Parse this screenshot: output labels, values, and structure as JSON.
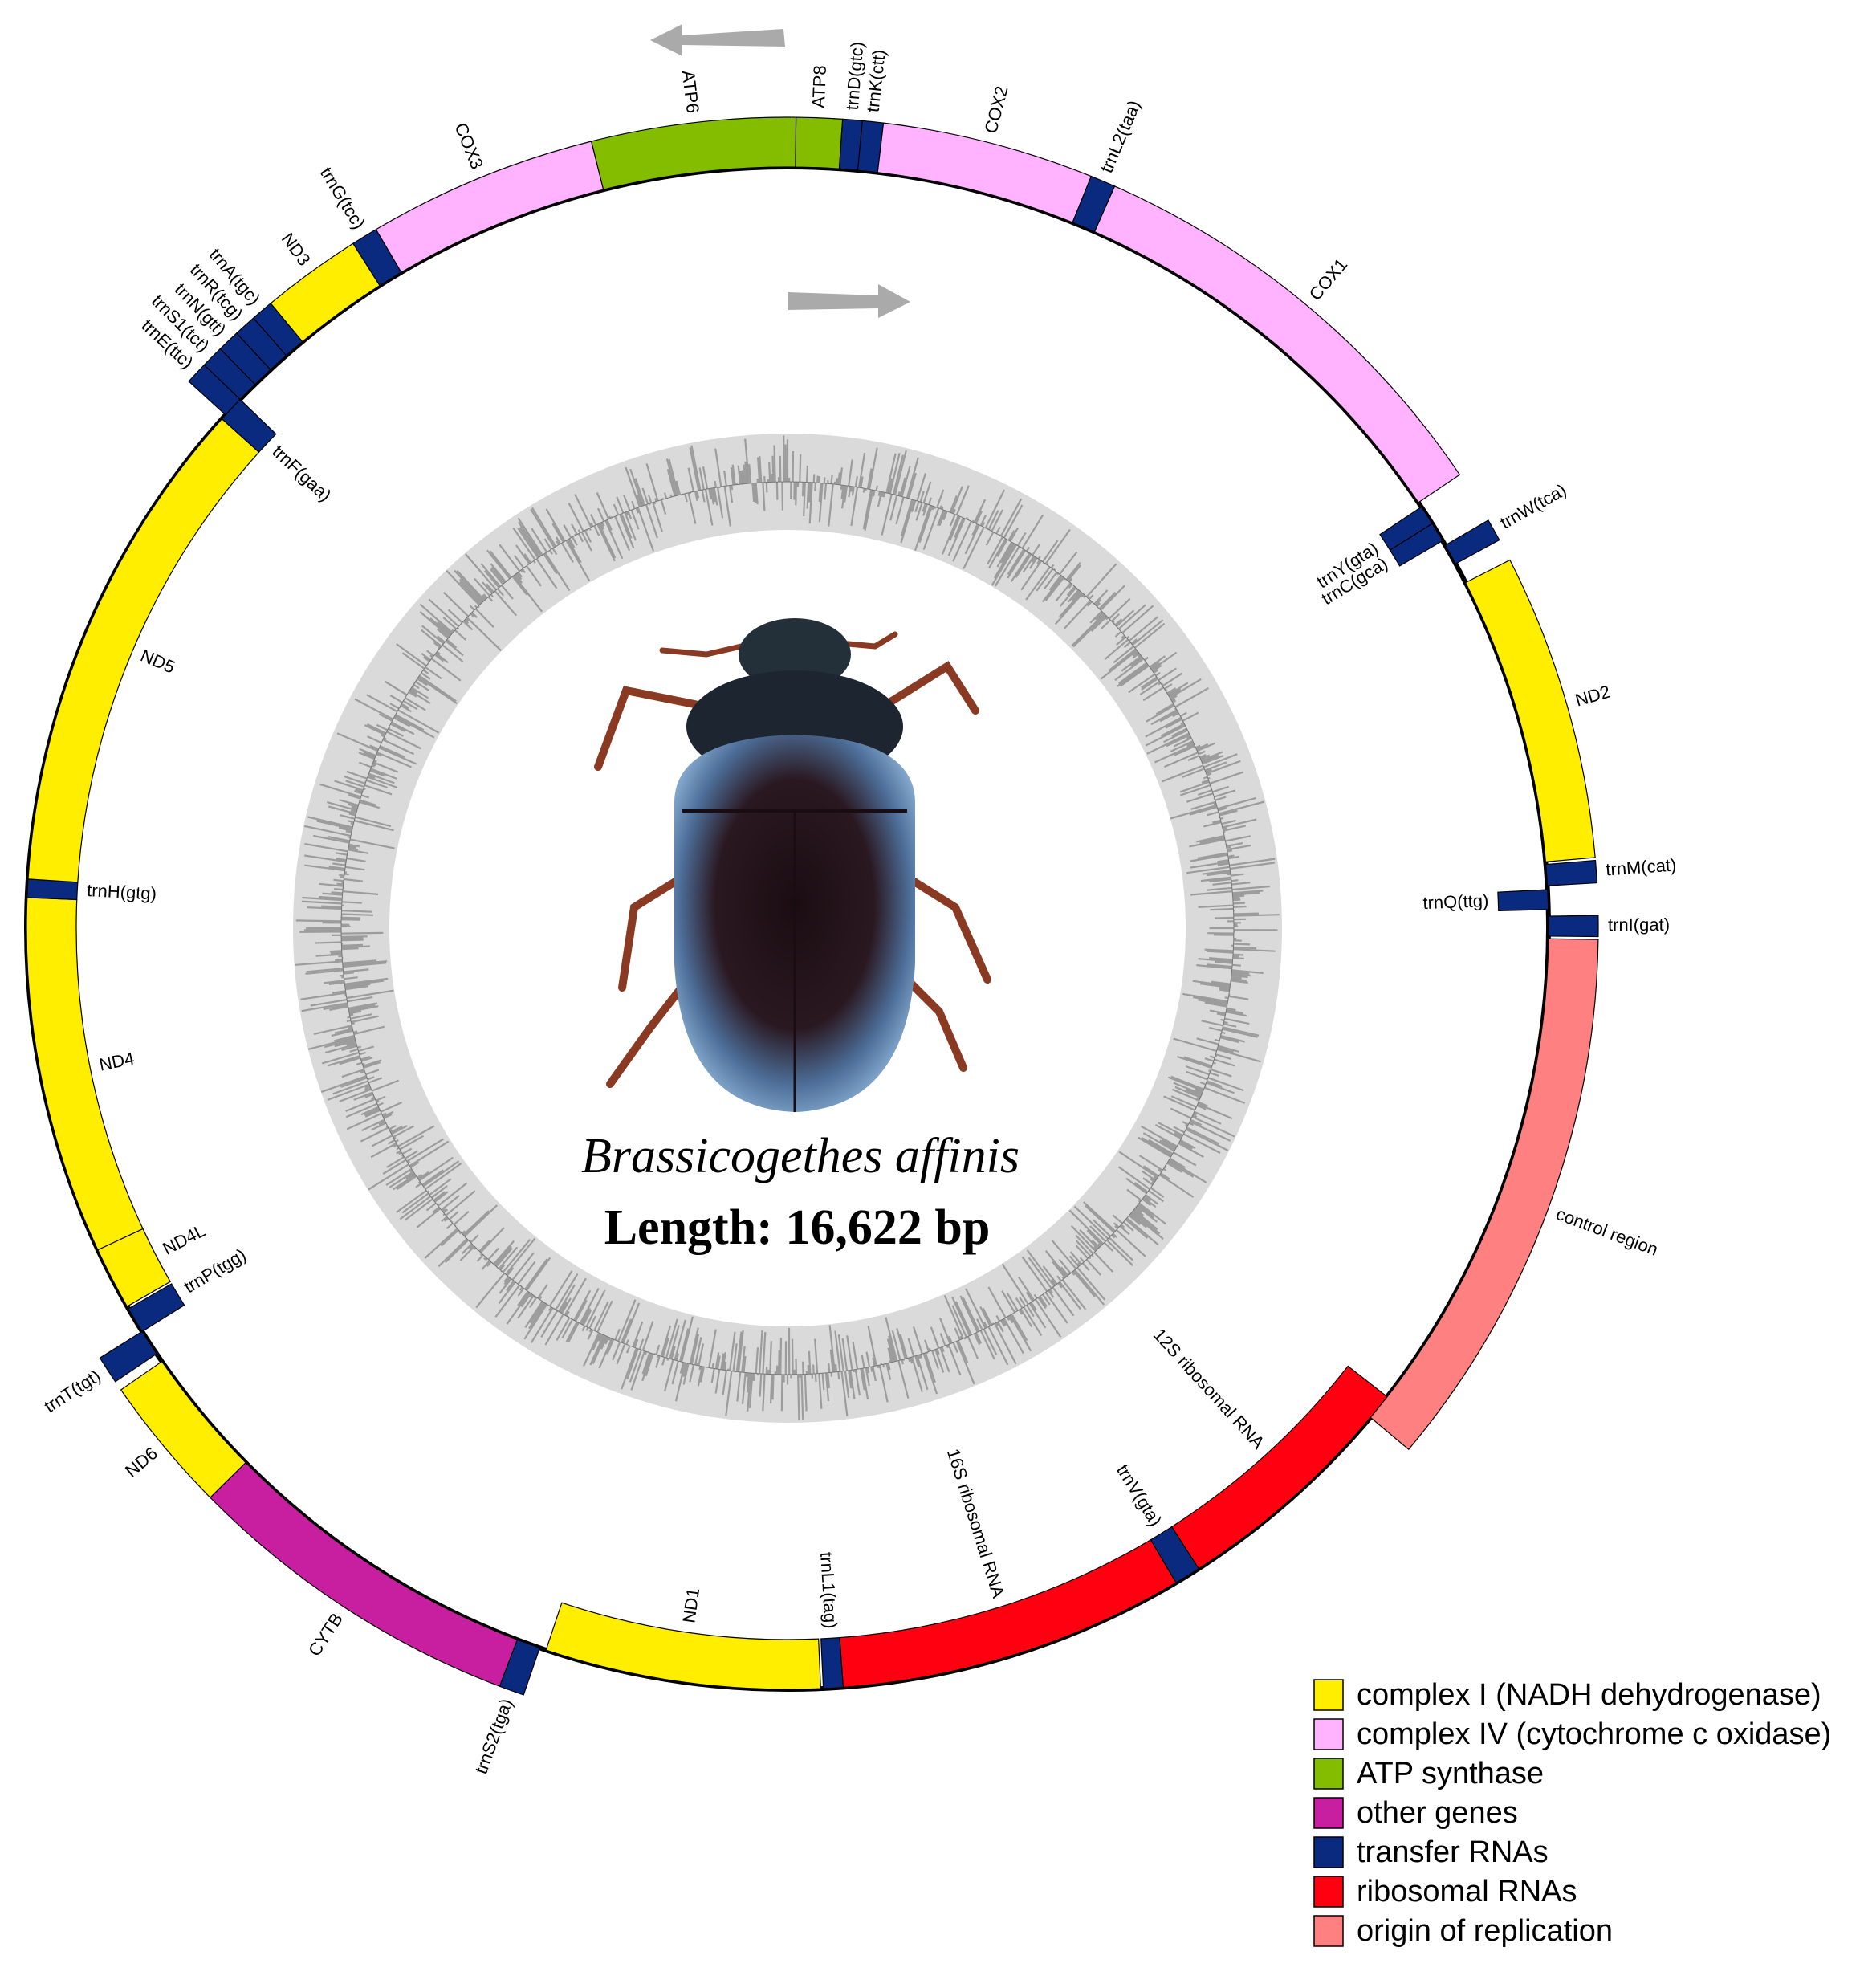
{
  "title": "Brassicogethes affinis",
  "length_label": "Length: 16,622 bp",
  "genes": [
    {
      "label": "ATP8",
      "color": "#84bd00"
    },
    {
      "label": "trnD(gtc)",
      "color": "#0a2a80"
    },
    {
      "label": "trnK(ctt)",
      "color": "#0a2a80"
    },
    {
      "label": "COX2",
      "color": "#ffb3ff"
    },
    {
      "label": "trnL2(taa)",
      "color": "#0a2a80"
    },
    {
      "label": "COX1",
      "color": "#ffb3ff"
    },
    {
      "label": "trnY(gta)",
      "color": "#0a2a80"
    },
    {
      "label": "trnC(gca)",
      "color": "#0a2a80"
    },
    {
      "label": "trnW(tca)",
      "color": "#0a2a80"
    },
    {
      "label": "ND2",
      "color": "#ffee00"
    },
    {
      "label": "trnM(cat)",
      "color": "#0a2a80"
    },
    {
      "label": "trnQ(ttg)",
      "color": "#0a2a80"
    },
    {
      "label": "trnI(gat)",
      "color": "#0a2a80"
    },
    {
      "label": "control region",
      "color": "#ff8080"
    },
    {
      "label": "12S ribosomal RNA",
      "color": "#ff0010"
    },
    {
      "label": "trnV(gta)",
      "color": "#0a2a80"
    },
    {
      "label": "16S ribosomal RNA",
      "color": "#ff0010"
    },
    {
      "label": "trnL1(tag)",
      "color": "#0a2a80"
    },
    {
      "label": "ND1",
      "color": "#ffee00"
    },
    {
      "label": "trnS2(tga)",
      "color": "#0a2a80"
    },
    {
      "label": "CYTB",
      "color": "#c71fa0"
    },
    {
      "label": "ND6",
      "color": "#ffee00"
    },
    {
      "label": "trnT(tgt)",
      "color": "#0a2a80"
    },
    {
      "label": "trnP(tgg)",
      "color": "#0a2a80"
    },
    {
      "label": "ND4L",
      "color": "#ffee00"
    },
    {
      "label": "ND4",
      "color": "#ffee00"
    },
    {
      "label": "trnH(gtg)",
      "color": "#0a2a80"
    },
    {
      "label": "ND5",
      "color": "#ffee00"
    },
    {
      "label": "trnF(gaa)",
      "color": "#0a2a80"
    },
    {
      "label": "trnE(ttc)",
      "color": "#0a2a80"
    },
    {
      "label": "trnS1(tct)",
      "color": "#0a2a80"
    },
    {
      "label": "trnN(gtt)",
      "color": "#0a2a80"
    },
    {
      "label": "trnR(tcg)",
      "color": "#0a2a80"
    },
    {
      "label": "trnA(tgc)",
      "color": "#0a2a80"
    },
    {
      "label": "ND3",
      "color": "#ffee00"
    },
    {
      "label": "trnG(tcc)",
      "color": "#0a2a80"
    },
    {
      "label": "COX3",
      "color": "#ffb3ff"
    },
    {
      "label": "ATP6",
      "color": "#84bd00"
    }
  ],
  "legend": [
    {
      "label": "complex I (NADH dehydrogenase)",
      "color": "#ffee00"
    },
    {
      "label": "complex IV (cytochrome c oxidase)",
      "color": "#ffb3ff"
    },
    {
      "label": "ATP synthase",
      "color": "#84bd00"
    },
    {
      "label": "other genes",
      "color": "#c71fa0"
    },
    {
      "label": "transfer RNAs",
      "color": "#0a2a80"
    },
    {
      "label": "ribosomal RNAs",
      "color": "#ff0010"
    },
    {
      "label": "origin of replication",
      "color": "#ff8080"
    }
  ]
}
